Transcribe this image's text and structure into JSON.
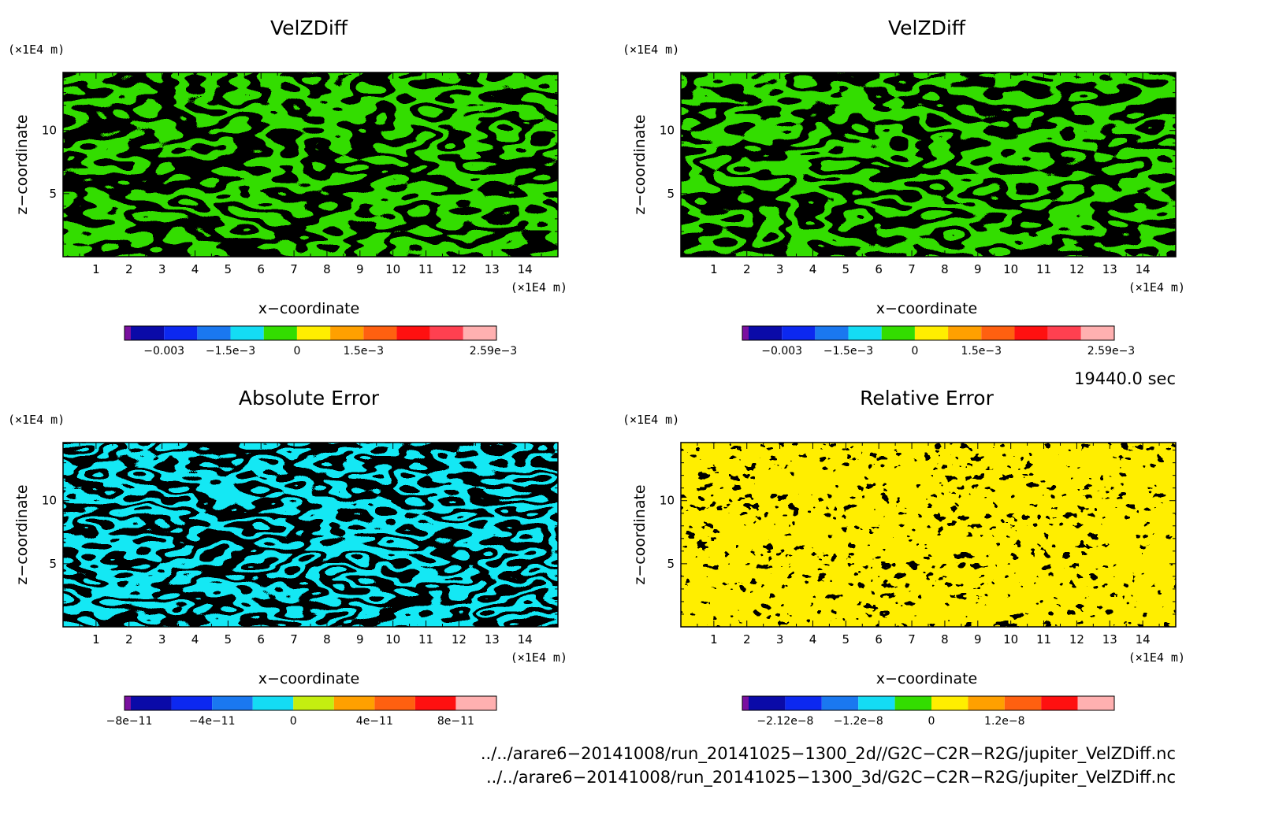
{
  "chart_data": [
    {
      "type": "heatmap",
      "title": "VelZDiff",
      "xlabel": "x−coordinate",
      "ylabel": "z−coordinate",
      "x_unit": "(×1E4 m)",
      "y_unit": "(×1E4 m)",
      "xlim": [
        0,
        15
      ],
      "ylim": [
        0,
        14.6
      ],
      "x_ticks": [
        "1",
        "2",
        "3",
        "4",
        "5",
        "6",
        "7",
        "8",
        "9",
        "10",
        "11",
        "12",
        "13",
        "14"
      ],
      "y_ticks": [
        "5",
        "10"
      ],
      "field_colors": [
        "#ffee00",
        "#33dd00"
      ],
      "colorbar": {
        "colors": [
          "#7a10a0",
          "#0a0aa8",
          "#0c28f0",
          "#1a78f0",
          "#14dcf4",
          "#33dd00",
          "#ffee00",
          "#ffa000",
          "#ff6010",
          "#ff1010",
          "#ff4050",
          "#ffb0b0"
        ],
        "labels": [
          "−0.003",
          "−1.5e−3",
          "0",
          "1.5e−3",
          "2.59e−3"
        ]
      }
    },
    {
      "type": "heatmap",
      "title": "VelZDiff",
      "xlabel": "x−coordinate",
      "ylabel": "z−coordinate",
      "x_unit": "(×1E4 m)",
      "y_unit": "(×1E4 m)",
      "xlim": [
        0,
        15
      ],
      "ylim": [
        0,
        14.6
      ],
      "x_ticks": [
        "1",
        "2",
        "3",
        "4",
        "5",
        "6",
        "7",
        "8",
        "9",
        "10",
        "11",
        "12",
        "13",
        "14"
      ],
      "y_ticks": [
        "5",
        "10"
      ],
      "field_colors": [
        "#ffee00",
        "#33dd00"
      ],
      "colorbar": {
        "colors": [
          "#7a10a0",
          "#0a0aa8",
          "#0c28f0",
          "#1a78f0",
          "#14dcf4",
          "#33dd00",
          "#ffee00",
          "#ffa000",
          "#ff6010",
          "#ff1010",
          "#ff4050",
          "#ffb0b0"
        ],
        "labels": [
          "−0.003",
          "−1.5e−3",
          "0",
          "1.5e−3",
          "2.59e−3"
        ]
      }
    },
    {
      "type": "heatmap",
      "title": "Absolute Error",
      "xlabel": "x−coordinate",
      "ylabel": "z−coordinate",
      "x_unit": "(×1E4 m)",
      "y_unit": "(×1E4 m)",
      "xlim": [
        0,
        15
      ],
      "ylim": [
        0,
        14.6
      ],
      "x_ticks": [
        "1",
        "2",
        "3",
        "4",
        "5",
        "6",
        "7",
        "8",
        "9",
        "10",
        "11",
        "12",
        "13",
        "14"
      ],
      "y_ticks": [
        "5",
        "10"
      ],
      "field_colors": [
        "#c4ee10",
        "#14e8f4"
      ],
      "colorbar": {
        "colors": [
          "#7a10a0",
          "#0a0aa8",
          "#0c28f0",
          "#1a78f0",
          "#14dcf4",
          "#c4ee10",
          "#ffa000",
          "#ff6010",
          "#ff1010",
          "#ffb0b0"
        ],
        "labels": [
          "−8e−11",
          "−4e−11",
          "0",
          "4e−11",
          "8e−11"
        ]
      }
    },
    {
      "type": "heatmap",
      "title": "Relative Error",
      "xlabel": "x−coordinate",
      "ylabel": "z−coordinate",
      "x_unit": "(×1E4 m)",
      "y_unit": "(×1E4 m)",
      "xlim": [
        0,
        15
      ],
      "ylim": [
        0,
        14.6
      ],
      "x_ticks": [
        "1",
        "2",
        "3",
        "4",
        "5",
        "6",
        "7",
        "8",
        "9",
        "10",
        "11",
        "12",
        "13",
        "14"
      ],
      "y_ticks": [
        "5",
        "10"
      ],
      "field_colors": [
        "#ffee00",
        "#33dd00"
      ],
      "colorbar": {
        "colors": [
          "#7a10a0",
          "#0a0aa8",
          "#0c28f0",
          "#1a78f0",
          "#14dcf4",
          "#33dd00",
          "#ffee00",
          "#ffa000",
          "#ff6010",
          "#ff1010",
          "#ffb0b0"
        ],
        "labels": [
          "−2.12e−8",
          "−1.2e−8",
          "0",
          "1.2e−8"
        ]
      }
    }
  ],
  "time_label": "19440.0 sec",
  "footer": {
    "file1": "../../arare6−20141008/run_20141025−1300_2d//G2C−C2R−R2G/jupiter_VelZDiff.nc",
    "file2": "../../arare6−20141008/run_20141025−1300_3d/G2C−C2R−R2G/jupiter_VelZDiff.nc"
  }
}
